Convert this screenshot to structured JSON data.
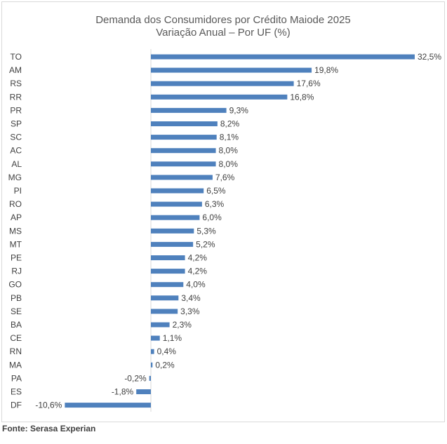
{
  "chart_data": {
    "type": "bar",
    "orientation": "horizontal",
    "title": "Demanda dos Consumidores por Crédito Maiode 2025",
    "subtitle": "Variação Anual – Por UF (%)",
    "categories": [
      "TO",
      "AM",
      "RS",
      "RR",
      "PR",
      "SP",
      "SC",
      "AC",
      "AL",
      "MG",
      "PI",
      "RO",
      "AP",
      "MS",
      "MT",
      "PE",
      "RJ",
      "GO",
      "PB",
      "SE",
      "BA",
      "CE",
      "RN",
      "MA",
      "PA",
      "ES",
      "DF"
    ],
    "values": [
      32.5,
      19.8,
      17.6,
      16.8,
      9.3,
      8.2,
      8.1,
      8.0,
      8.0,
      7.6,
      6.5,
      6.3,
      6.0,
      5.3,
      5.2,
      4.2,
      4.2,
      4.0,
      3.4,
      3.3,
      2.3,
      1.1,
      0.4,
      0.2,
      -0.2,
      -1.8,
      -10.6
    ],
    "value_labels": [
      "32,5%",
      "19,8%",
      "17,6%",
      "16,8%",
      "9,3%",
      "8,2%",
      "8,1%",
      "8,0%",
      "8,0%",
      "7,6%",
      "6,5%",
      "6,3%",
      "6,0%",
      "5,3%",
      "5,2%",
      "4,2%",
      "4,2%",
      "4,0%",
      "3,4%",
      "3,3%",
      "2,3%",
      "1,1%",
      "0,4%",
      "0,2%",
      "-0,2%",
      "-1,8%",
      "-10,6%"
    ],
    "xlim": [
      -10.6,
      32.5
    ],
    "grid": false,
    "legend": "none",
    "bar_color": "#4f81bd",
    "axis_color": "#d9d9d9"
  },
  "footer": {
    "source": "Fonte: Serasa Experian"
  }
}
